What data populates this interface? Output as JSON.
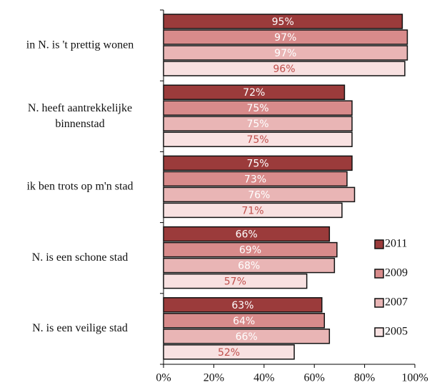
{
  "chart_data": {
    "type": "hbar",
    "categories": [
      "in N. is 't prettig wonen",
      "N. heeft aantrekkelijke binnenstad",
      "ik ben trots op m'n stad",
      "N. is een schone stad",
      "N. is een veilige stad"
    ],
    "series": [
      {
        "name": "2011",
        "color": "#9b3b3b",
        "label_color": "#ffffff",
        "values": [
          95,
          72,
          75,
          66,
          63
        ],
        "value_labels": [
          "95%",
          "72%",
          "75%",
          "66%",
          "63%"
        ]
      },
      {
        "name": "2009",
        "color": "#d88b8b",
        "label_color": "#ffffff",
        "values": [
          97,
          75,
          73,
          69,
          64
        ],
        "value_labels": [
          "97%",
          "75%",
          "73%",
          "69%",
          "64%"
        ]
      },
      {
        "name": "2007",
        "color": "#e9b5b5",
        "label_color": "#ffffff",
        "values": [
          97,
          75,
          76,
          68,
          66
        ],
        "value_labels": [
          "97%",
          "75%",
          "76%",
          "68%",
          "66%"
        ]
      },
      {
        "name": "2005",
        "color": "#f8e1e1",
        "label_color": "#c0504d",
        "values": [
          96,
          75,
          71,
          57,
          52
        ],
        "value_labels": [
          "96%",
          "75%",
          "71%",
          "57%",
          "52%"
        ]
      }
    ],
    "xlim": [
      0,
      100
    ],
    "xticks": [
      {
        "value": 0,
        "label": "0%"
      },
      {
        "value": 20,
        "label": "20%"
      },
      {
        "value": 40,
        "label": "40%"
      },
      {
        "value": 60,
        "label": "60%"
      },
      {
        "value": 80,
        "label": "80%"
      },
      {
        "value": 100,
        "label": "100%"
      }
    ],
    "legend": "right"
  }
}
